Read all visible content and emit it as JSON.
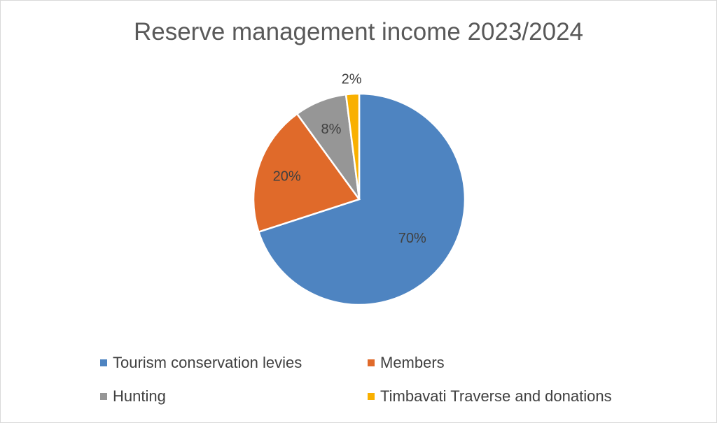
{
  "chart_data": {
    "type": "pie",
    "title": "Reserve management income 2023/2024",
    "categories": [
      "Tourism conservation levies",
      "Members",
      "Hunting",
      "Timbavati Traverse and donations"
    ],
    "values": [
      70,
      20,
      8,
      2
    ],
    "data_labels": [
      "70%",
      "20%",
      "8%",
      "2%"
    ],
    "colors": [
      "#4E84C1",
      "#E06A2A",
      "#969696",
      "#F9B000"
    ],
    "legend_position": "bottom"
  }
}
